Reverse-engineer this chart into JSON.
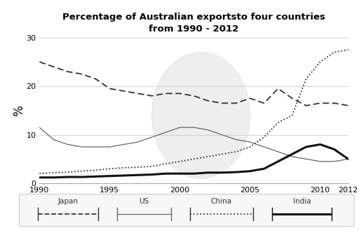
{
  "title": "Percentage of Australian exportsto four countries\nfrom 1990 - 2012",
  "ylabel": "%",
  "xlim": [
    1990,
    2012
  ],
  "ylim": [
    0,
    30
  ],
  "yticks": [
    0,
    10,
    20,
    30
  ],
  "xticks": [
    1990,
    1995,
    2000,
    2005,
    2010,
    2012
  ],
  "years": [
    1990,
    1991,
    1992,
    1993,
    1994,
    1995,
    1996,
    1997,
    1998,
    1999,
    2000,
    2001,
    2002,
    2003,
    2004,
    2005,
    2006,
    2007,
    2008,
    2009,
    2010,
    2011,
    2012
  ],
  "japan": [
    25.0,
    24.0,
    23.0,
    22.5,
    21.5,
    19.5,
    19.0,
    18.5,
    18.0,
    18.5,
    18.5,
    18.0,
    17.0,
    16.5,
    16.5,
    17.5,
    16.5,
    19.5,
    17.5,
    16.0,
    16.5,
    16.5,
    16.0
  ],
  "us": [
    11.5,
    9.0,
    8.0,
    7.5,
    7.5,
    7.5,
    8.0,
    8.5,
    9.5,
    10.5,
    11.5,
    11.5,
    11.0,
    10.0,
    9.0,
    8.5,
    7.5,
    6.5,
    5.5,
    5.0,
    4.5,
    4.5,
    5.0
  ],
  "china": [
    2.0,
    2.2,
    2.3,
    2.5,
    2.7,
    3.0,
    3.2,
    3.3,
    3.5,
    4.0,
    4.5,
    5.0,
    5.5,
    6.0,
    6.5,
    7.5,
    9.5,
    12.5,
    14.0,
    21.5,
    25.0,
    27.0,
    27.5
  ],
  "india": [
    1.2,
    1.2,
    1.3,
    1.3,
    1.4,
    1.5,
    1.6,
    1.7,
    1.8,
    2.0,
    2.0,
    2.0,
    2.2,
    2.2,
    2.3,
    2.5,
    3.0,
    4.5,
    6.0,
    7.5,
    8.0,
    7.0,
    5.0
  ],
  "japan_color": "#333333",
  "us_color": "#666666",
  "china_color": "#333333",
  "india_color": "#111111",
  "background_color": "#ffffff",
  "watermark_color": "#e0e0e0"
}
